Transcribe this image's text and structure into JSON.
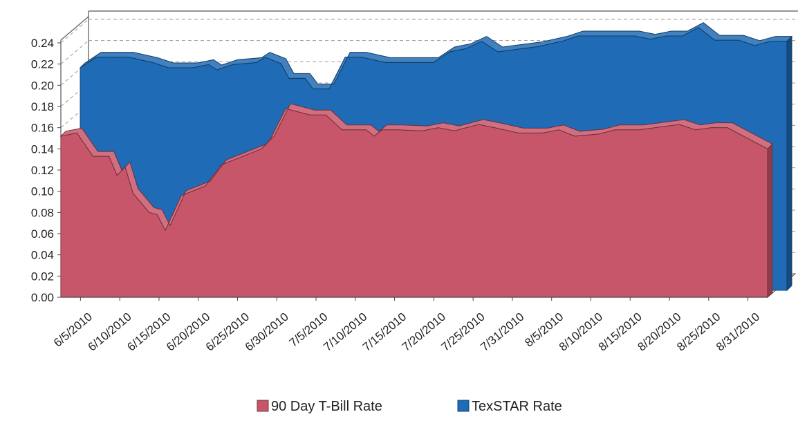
{
  "chart_data": {
    "type": "area",
    "title": "",
    "xlabel": "",
    "ylabel": "",
    "ylim": [
      0,
      0.24
    ],
    "y_ticks": [
      "0.00",
      "0.02",
      "0.04",
      "0.06",
      "0.08",
      "0.10",
      "0.12",
      "0.14",
      "0.16",
      "0.18",
      "0.20",
      "0.22",
      "0.24"
    ],
    "x_tick_labels": [
      "6/5/2010",
      "6/10/2010",
      "6/15/2010",
      "6/20/2010",
      "6/25/2010",
      "6/30/2010",
      "7/5/2010",
      "7/10/2010",
      "7/15/2010",
      "7/20/2010",
      "7/25/2010",
      "7/31/2010",
      "8/5/2010",
      "8/10/2010",
      "8/15/2010",
      "8/20/2010",
      "8/25/2010",
      "8/31/2010"
    ],
    "grid": true,
    "three_d": true,
    "legend_position": "bottom",
    "series": [
      {
        "name": "90 Day T-Bill Rate",
        "color": "#c8566a",
        "x": [
          "6/4/2010",
          "6/6/2010",
          "6/8/2010",
          "6/10/2010",
          "6/11/2010",
          "6/12/2010",
          "6/13/2010",
          "6/15/2010",
          "6/16/2010",
          "6/17/2010",
          "6/19/2010",
          "6/21/2010",
          "6/22/2010",
          "6/24/2010",
          "6/26/2010",
          "6/28/2010",
          "6/29/2010",
          "6/30/2010",
          "7/2/2010",
          "7/5/2010",
          "7/7/2010",
          "7/9/2010",
          "7/12/2010",
          "7/13/2010",
          "7/14/2010",
          "7/16/2010",
          "7/19/2010",
          "7/21/2010",
          "7/23/2010",
          "7/26/2010",
          "7/28/2010",
          "7/31/2010",
          "8/3/2010",
          "8/5/2010",
          "8/7/2010",
          "8/10/2010",
          "8/12/2010",
          "8/15/2010",
          "8/17/2010",
          "8/20/2010",
          "8/22/2010",
          "8/24/2010",
          "8/26/2010",
          "8/28/2010",
          "8/31/2010"
        ],
        "values": [
          0.152,
          0.155,
          0.133,
          0.133,
          0.115,
          0.123,
          0.098,
          0.08,
          0.078,
          0.063,
          0.096,
          0.102,
          0.105,
          0.125,
          0.131,
          0.137,
          0.14,
          0.148,
          0.178,
          0.172,
          0.172,
          0.158,
          0.158,
          0.152,
          0.158,
          0.158,
          0.157,
          0.16,
          0.157,
          0.163,
          0.16,
          0.155,
          0.155,
          0.158,
          0.152,
          0.154,
          0.158,
          0.158,
          0.16,
          0.163,
          0.158,
          0.16,
          0.16,
          0.152,
          0.14
        ]
      },
      {
        "name": "TexSTAR Rate",
        "color": "#1f6bb5",
        "x": [
          "6/4/2010",
          "6/6/2010",
          "6/8/2010",
          "6/10/2010",
          "6/13/2010",
          "6/15/2010",
          "6/18/2010",
          "6/20/2010",
          "6/21/2010",
          "6/23/2010",
          "6/26/2010",
          "6/27/2010",
          "6/29/2010",
          "6/30/2010",
          "7/2/2010",
          "7/3/2010",
          "7/5/2010",
          "7/7/2010",
          "7/9/2010",
          "7/12/2010",
          "7/15/2010",
          "7/18/2010",
          "7/20/2010",
          "7/22/2010",
          "7/24/2010",
          "7/26/2010",
          "7/29/2010",
          "7/31/2010",
          "8/3/2010",
          "8/5/2010",
          "8/8/2010",
          "8/10/2010",
          "8/12/2010",
          "8/14/2010",
          "8/16/2010",
          "8/18/2010",
          "8/20/2010",
          "8/22/2010",
          "8/25/2010",
          "8/27/2010",
          "8/29/2010",
          "8/31/2010"
        ],
        "values": [
          0.21,
          0.22,
          0.22,
          0.22,
          0.215,
          0.21,
          0.21,
          0.213,
          0.208,
          0.213,
          0.215,
          0.22,
          0.214,
          0.2,
          0.2,
          0.19,
          0.19,
          0.22,
          0.22,
          0.215,
          0.215,
          0.215,
          0.225,
          0.228,
          0.235,
          0.225,
          0.228,
          0.23,
          0.235,
          0.24,
          0.24,
          0.24,
          0.24,
          0.237,
          0.24,
          0.24,
          0.248,
          0.236,
          0.236,
          0.231,
          0.235,
          0.235
        ]
      }
    ]
  }
}
